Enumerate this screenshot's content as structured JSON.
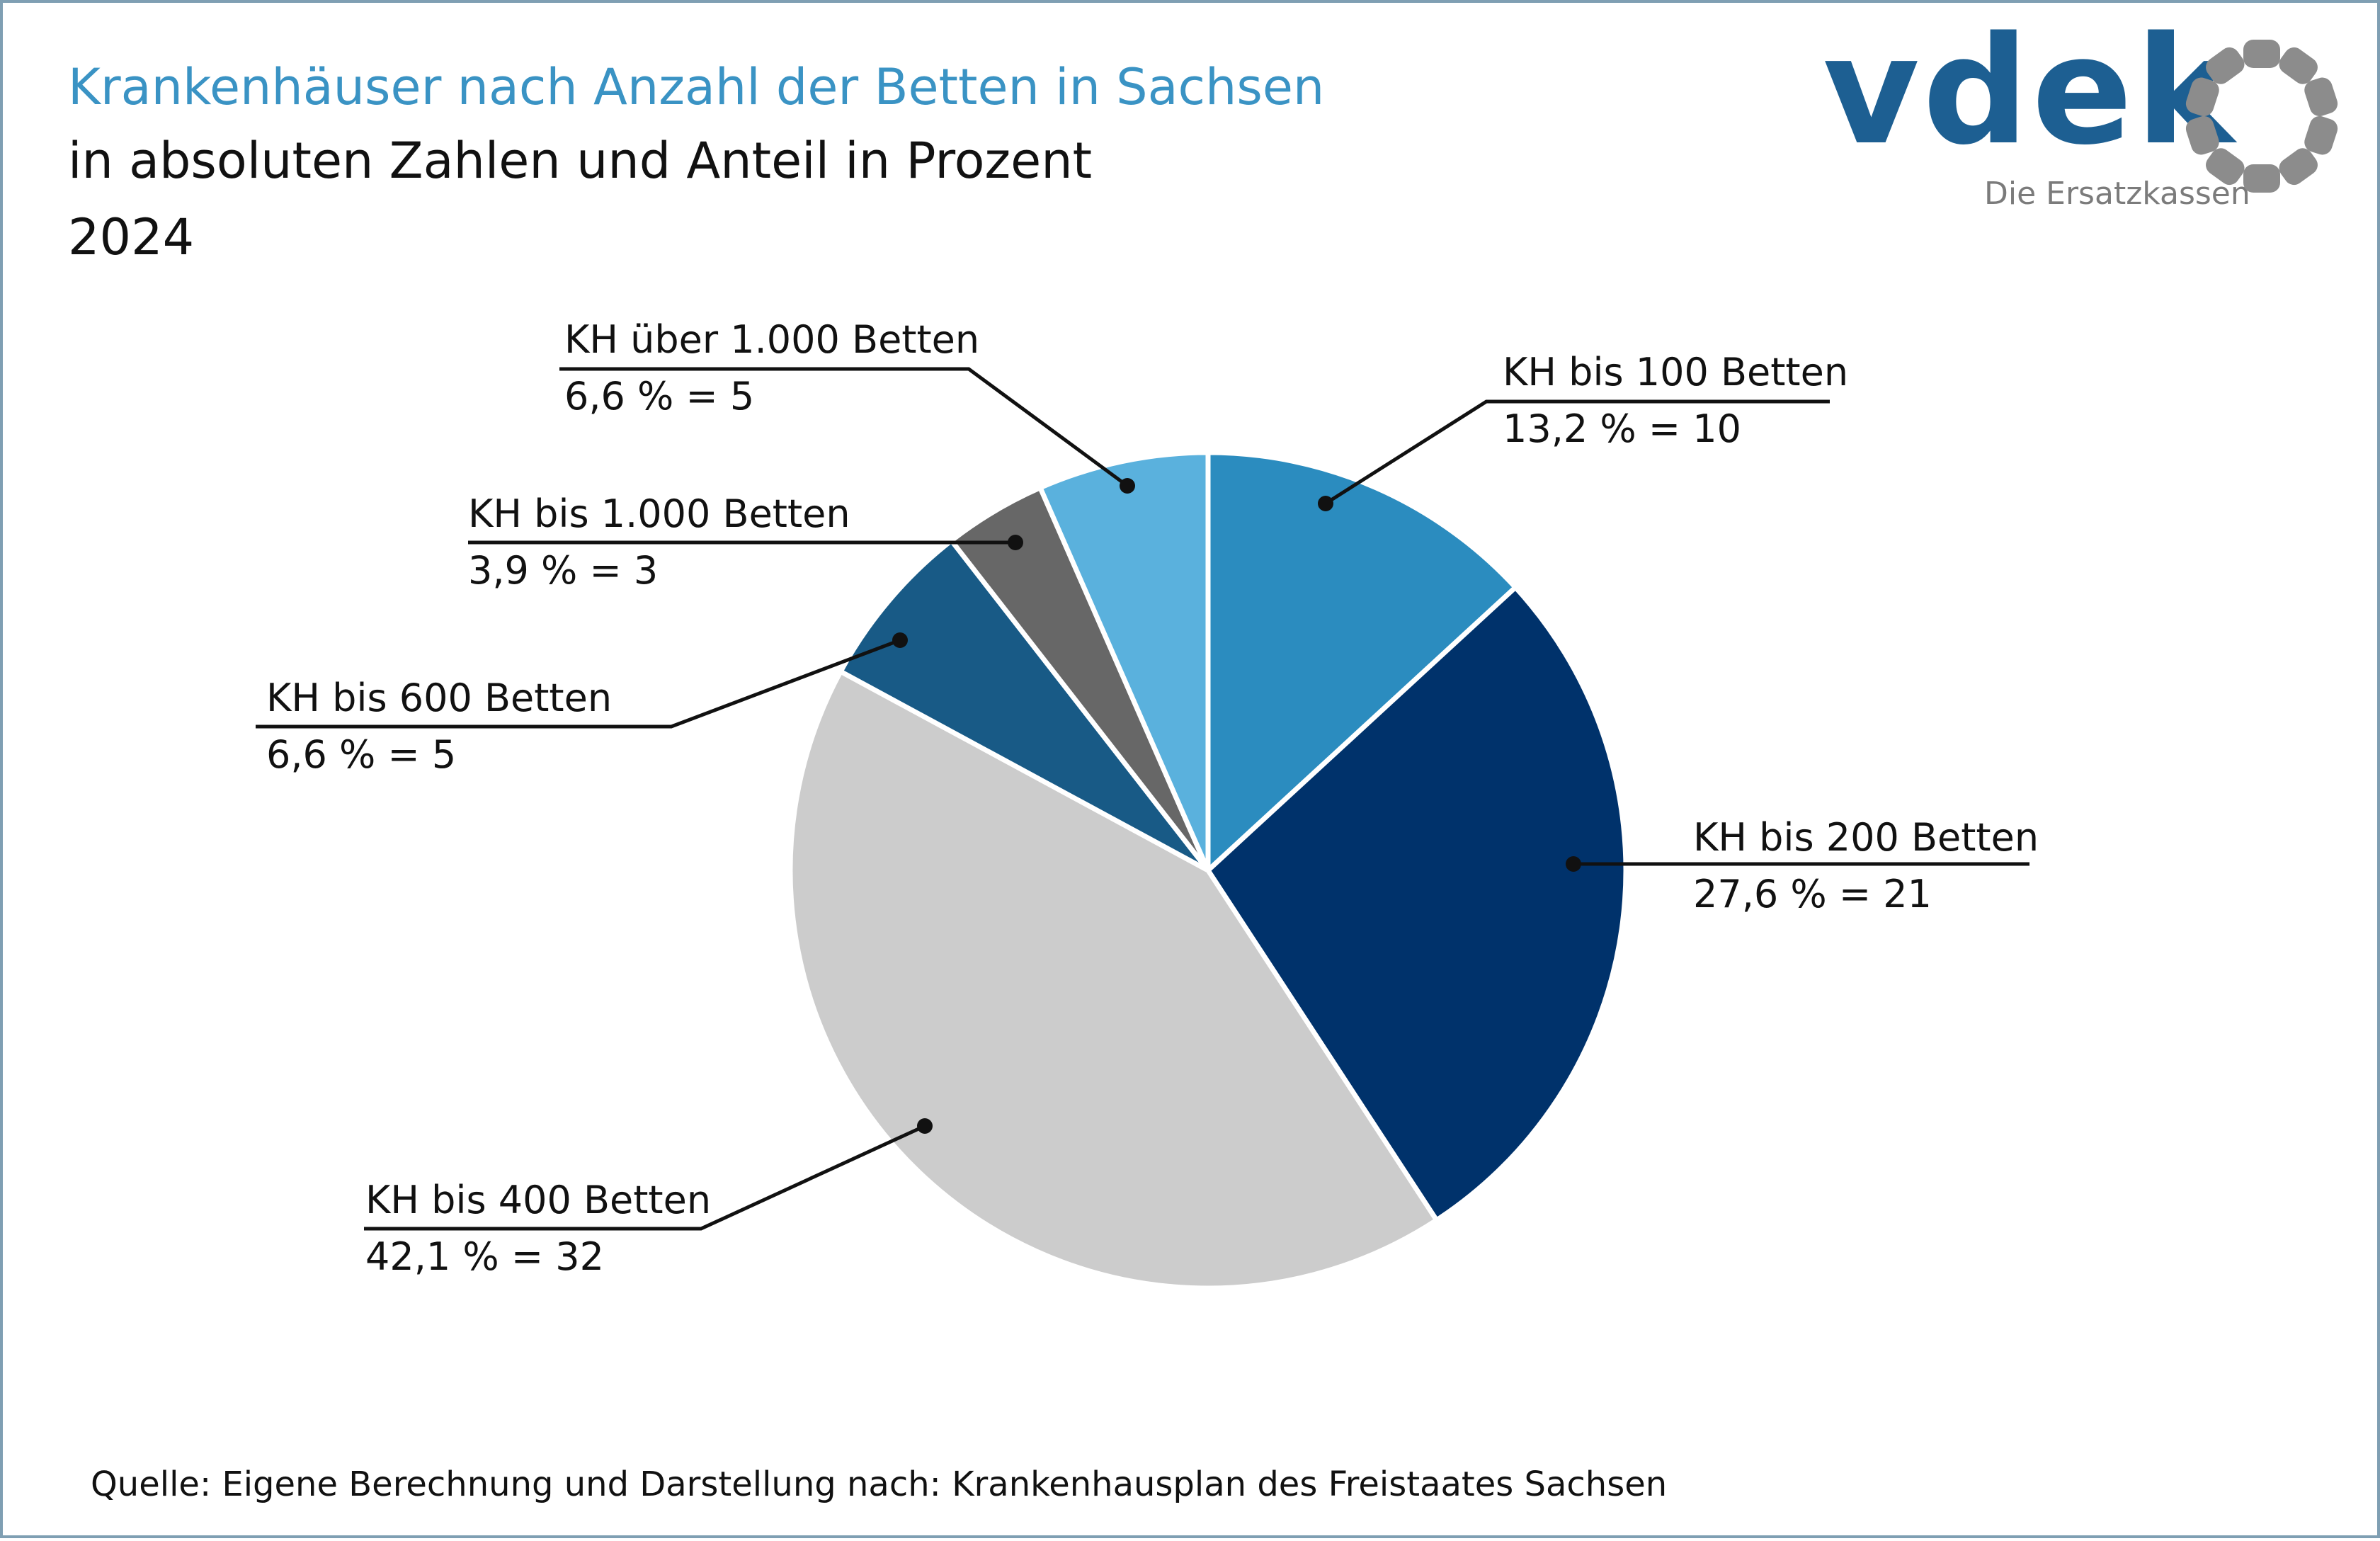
{
  "title": "Krankenhäuser nach Anzahl der Betten in Sachsen",
  "subtitle": "in absoluten Zahlen und Anteil in Prozent",
  "year": "2024",
  "source": "Quelle: Eigene Berechnung und Darstellung nach: Krankenhausplan des Freistaates Sachsen",
  "logo": {
    "wordmark": "vdek",
    "tagline": "Die Ersatzkassen",
    "icon": "ring-of-dots-logo-icon"
  },
  "colors": {
    "title": "#3a93c4",
    "text": "#111111",
    "logo_blue": "#1d5f92",
    "logo_gray": "#8c8c8c",
    "frame": "#7f9fb3"
  },
  "chart_data": {
    "type": "pie",
    "start": "12 o'clock",
    "direction": "clockwise",
    "slices": [
      {
        "category": "KH bis 100 Betten",
        "value": 10,
        "percent_label": "13,2 % = 10",
        "color": "#2b8cbf"
      },
      {
        "category": "KH bis 200 Betten",
        "value": 21,
        "percent_label": "27,6 % = 21",
        "color": "#00326b"
      },
      {
        "category": "KH bis 400 Betten",
        "value": 32,
        "percent_label": "42,1 % = 32",
        "color": "#cccccc"
      },
      {
        "category": "KH bis 600 Betten",
        "value": 5,
        "percent_label": "6,6 % = 5",
        "color": "#185a86"
      },
      {
        "category": "KH bis 1.000 Betten",
        "value": 3,
        "percent_label": "3,9 % = 3",
        "color": "#676767"
      },
      {
        "category": "KH über 1.000 Betten",
        "value": 5,
        "percent_label": "6,6 % = 5",
        "color": "#5ab1dd"
      }
    ]
  }
}
